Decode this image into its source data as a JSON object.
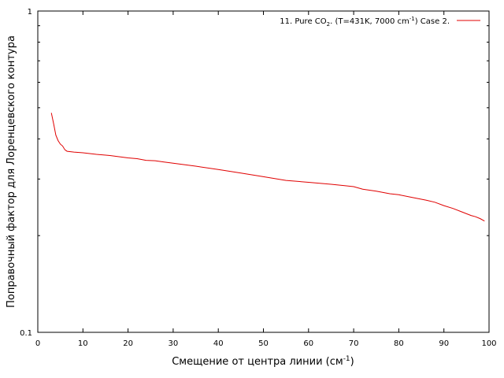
{
  "chart_data": {
    "type": "line",
    "xlabel": "Смещение от центра линии (см",
    "xlabel_sup": "-1",
    "xlabel_end": ")",
    "ylabel": "Поправочный фактор для Лоренцевского контура",
    "xlim": [
      0,
      100
    ],
    "ylim": [
      0.1,
      1
    ],
    "y_scale": "log",
    "grid": false,
    "legend_position": "top-right",
    "x_ticks": [
      "0",
      "10",
      "20",
      "30",
      "40",
      "50",
      "60",
      "70",
      "80",
      "90",
      "100"
    ],
    "y_ticks": [
      "0.1",
      "1"
    ],
    "series": [
      {
        "name": "11. Pure CO2. (T=431K, 7000 cm-1) Case 2.",
        "legend": {
          "part1": "11. Pure CO",
          "sub": "2",
          "part2": ". (T=431K, 7000 cm",
          "sup": "-1",
          "part3": ") Case 2."
        },
        "color": "#e00000",
        "x": [
          3,
          3.5,
          4,
          4.5,
          5,
          5.5,
          6,
          6.5,
          8,
          10,
          13,
          16,
          18,
          20,
          22,
          24,
          26,
          28,
          30,
          35,
          40,
          45,
          50,
          55,
          60,
          65,
          68,
          70,
          72,
          75,
          78,
          80,
          83,
          86,
          88,
          90,
          92,
          94,
          96,
          97,
          98,
          99
        ],
        "y": [
          0.482,
          0.446,
          0.411,
          0.395,
          0.385,
          0.38,
          0.37,
          0.366,
          0.364,
          0.362,
          0.358,
          0.355,
          0.352,
          0.349,
          0.347,
          0.343,
          0.342,
          0.339,
          0.336,
          0.329,
          0.321,
          0.313,
          0.305,
          0.297,
          0.293,
          0.289,
          0.286,
          0.284,
          0.279,
          0.275,
          0.27,
          0.268,
          0.263,
          0.258,
          0.254,
          0.248,
          0.243,
          0.237,
          0.231,
          0.229,
          0.226,
          0.222
        ]
      }
    ]
  }
}
